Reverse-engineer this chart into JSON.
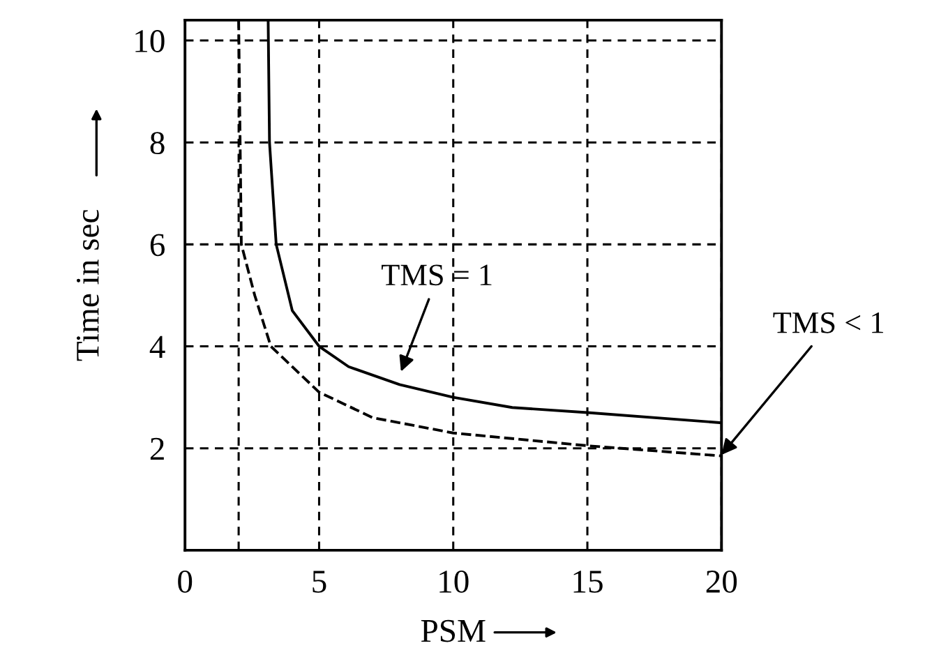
{
  "chart_data": {
    "type": "line",
    "xlabel": "PSM",
    "ylabel": "Time in sec",
    "xlim": [
      0,
      20
    ],
    "ylim": [
      0,
      10.4
    ],
    "xticks": [
      0,
      {
        "value": 2,
        "label": null
      },
      5,
      10,
      15,
      20
    ],
    "yticks": [
      2,
      4,
      6,
      8,
      10
    ],
    "grid": true,
    "legend": false,
    "marker": "none",
    "series": [
      {
        "color": "#000000",
        "line_style": "solid",
        "x": [
          3.1,
          3.15,
          3.4,
          4.0,
          5,
          6.1,
          8,
          10,
          12.2,
          15,
          20
        ],
        "values": [
          10.4,
          8,
          6,
          4.7,
          4,
          3.6,
          3.25,
          3.0,
          2.8,
          2.7,
          2.5
        ]
      },
      {
        "color": "#000000",
        "line_style": "dashed",
        "x": [
          2,
          2.1,
          2.6,
          3.2,
          5,
          7,
          10,
          15,
          20
        ],
        "values": [
          10.4,
          6,
          5,
          4,
          3.1,
          2.6,
          2.3,
          2.05,
          1.85
        ]
      }
    ],
    "annotations": [
      "TMS = 1",
      "TMS < 1"
    ]
  }
}
